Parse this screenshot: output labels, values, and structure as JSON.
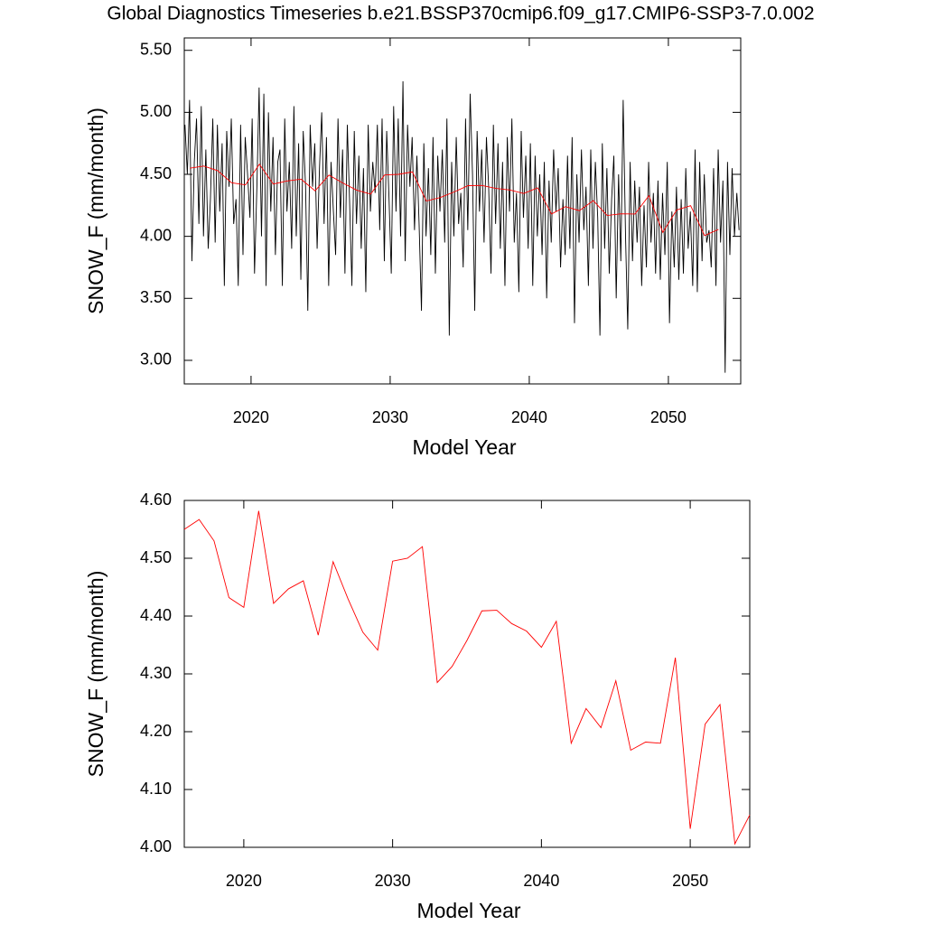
{
  "chart_data": [
    {
      "type": "line",
      "title": "Global Diagnostics Timeseries b.e21.BSSP370cmip6.f09_g17.CMIP6-SSP3-7.0.002",
      "xlabel": "Model Year",
      "ylabel": "SNOW_F (mm/month)",
      "xlim": [
        2015.2,
        2055.2
      ],
      "xticks": [
        2020,
        2030,
        2040,
        2050
      ],
      "ylim": [
        2.81,
        5.6
      ],
      "yticks": [
        {
          "value": 3,
          "label": "3.00"
        },
        {
          "value": 3.5,
          "label": "3.50"
        },
        {
          "value": 4,
          "label": "4.00"
        },
        {
          "value": 4.5,
          "label": "4.50"
        },
        {
          "value": 5,
          "label": "5.00"
        },
        {
          "value": 5.5,
          "label": "5.50"
        }
      ],
      "series": [
        {
          "color": "#000000",
          "x": [
            2015.25,
            2015.42,
            2015.58,
            2015.75,
            2015.92,
            2016.08,
            2016.25,
            2016.42,
            2016.58,
            2016.75,
            2016.92,
            2017.08,
            2017.25,
            2017.42,
            2017.58,
            2017.75,
            2017.92,
            2018.08,
            2018.25,
            2018.42,
            2018.58,
            2018.75,
            2018.92,
            2019.08,
            2019.25,
            2019.42,
            2019.58,
            2019.75,
            2019.92,
            2020.08,
            2020.25,
            2020.42,
            2020.58,
            2020.75,
            2020.92,
            2021.08,
            2021.25,
            2021.42,
            2021.58,
            2021.75,
            2021.92,
            2022.08,
            2022.25,
            2022.42,
            2022.58,
            2022.75,
            2022.92,
            2023.08,
            2023.25,
            2023.42,
            2023.58,
            2023.75,
            2023.92,
            2024.08,
            2024.25,
            2024.42,
            2024.58,
            2024.75,
            2024.92,
            2025.08,
            2025.25,
            2025.42,
            2025.58,
            2025.75,
            2025.92,
            2026.08,
            2026.25,
            2026.42,
            2026.58,
            2026.75,
            2026.92,
            2027.08,
            2027.25,
            2027.42,
            2027.58,
            2027.75,
            2027.92,
            2028.08,
            2028.25,
            2028.42,
            2028.58,
            2028.75,
            2028.92,
            2029.08,
            2029.25,
            2029.42,
            2029.58,
            2029.75,
            2029.92,
            2030.08,
            2030.25,
            2030.42,
            2030.58,
            2030.75,
            2030.92,
            2031.08,
            2031.25,
            2031.42,
            2031.58,
            2031.75,
            2031.92,
            2032.08,
            2032.25,
            2032.42,
            2032.58,
            2032.75,
            2032.92,
            2033.08,
            2033.25,
            2033.42,
            2033.58,
            2033.75,
            2033.92,
            2034.08,
            2034.25,
            2034.42,
            2034.58,
            2034.75,
            2034.92,
            2035.08,
            2035.25,
            2035.42,
            2035.58,
            2035.75,
            2035.92,
            2036.08,
            2036.25,
            2036.42,
            2036.58,
            2036.75,
            2036.92,
            2037.08,
            2037.25,
            2037.42,
            2037.58,
            2037.75,
            2037.92,
            2038.08,
            2038.25,
            2038.42,
            2038.58,
            2038.75,
            2038.92,
            2039.08,
            2039.25,
            2039.42,
            2039.58,
            2039.75,
            2039.92,
            2040.08,
            2040.25,
            2040.42,
            2040.58,
            2040.75,
            2040.92,
            2041.08,
            2041.25,
            2041.42,
            2041.58,
            2041.75,
            2041.92,
            2042.08,
            2042.25,
            2042.42,
            2042.58,
            2042.75,
            2042.92,
            2043.08,
            2043.25,
            2043.42,
            2043.58,
            2043.75,
            2043.92,
            2044.08,
            2044.25,
            2044.42,
            2044.58,
            2044.75,
            2044.92,
            2045.08,
            2045.25,
            2045.42,
            2045.58,
            2045.75,
            2045.92,
            2046.08,
            2046.25,
            2046.42,
            2046.58,
            2046.75,
            2046.92,
            2047.08,
            2047.25,
            2047.42,
            2047.58,
            2047.75,
            2047.92,
            2048.08,
            2048.25,
            2048.42,
            2048.58,
            2048.75,
            2048.92,
            2049.08,
            2049.25,
            2049.42,
            2049.58,
            2049.75,
            2049.92,
            2050.08,
            2050.25,
            2050.42,
            2050.58,
            2050.75,
            2050.92,
            2051.08,
            2051.25,
            2051.42,
            2051.58,
            2051.75,
            2051.92,
            2052.08,
            2052.25,
            2052.42,
            2052.58,
            2052.75,
            2052.92,
            2053.08,
            2053.25,
            2053.42,
            2053.58,
            2053.75,
            2053.92,
            2054.08,
            2054.25,
            2054.42,
            2054.58,
            2054.75,
            2054.92,
            2055.08
          ],
          "values": [
            4.9,
            4.5,
            5.1,
            3.8,
            4.6,
            4.95,
            4.1,
            5.05,
            4.0,
            4.7,
            3.9,
            4.3,
            4.95,
            3.95,
            4.9,
            4.2,
            4.75,
            3.6,
            4.85,
            4.4,
            4.95,
            4.1,
            4.3,
            3.6,
            4.9,
            3.85,
            4.8,
            4.5,
            4.15,
            4.95,
            3.7,
            4.4,
            5.2,
            4.0,
            5.15,
            3.6,
            5.0,
            4.2,
            4.8,
            3.85,
            4.6,
            4.7,
            3.6,
            4.95,
            4.2,
            4.6,
            3.9,
            5.05,
            4.0,
            4.75,
            3.65,
            4.85,
            4.4,
            3.4,
            4.9,
            4.4,
            4.75,
            3.9,
            4.55,
            5.0,
            4.1,
            4.8,
            3.6,
            4.6,
            4.2,
            3.85,
            4.95,
            4.15,
            4.7,
            3.7,
            4.9,
            4.3,
            3.6,
            4.85,
            4.1,
            4.65,
            3.9,
            4.55,
            3.55,
            4.9,
            4.2,
            4.6,
            4.35,
            4.9,
            4.05,
            4.95,
            3.8,
            4.85,
            4.3,
            3.7,
            5.05,
            4.2,
            4.95,
            4.0,
            5.25,
            3.8,
            4.9,
            4.4,
            4.8,
            4.05,
            4.65,
            4.1,
            3.4,
            4.75,
            4.0,
            4.55,
            3.85,
            4.8,
            3.7,
            4.65,
            4.2,
            4.7,
            3.95,
            4.95,
            3.2,
            4.6,
            4.0,
            4.8,
            4.1,
            4.35,
            3.75,
            4.95,
            4.05,
            5.15,
            4.5,
            3.4,
            4.85,
            4.2,
            4.7,
            3.95,
            4.8,
            4.4,
            3.7,
            4.9,
            4.1,
            4.75,
            3.9,
            4.6,
            3.6,
            4.8,
            4.2,
            4.95,
            3.95,
            4.35,
            3.55,
            4.85,
            4.15,
            4.65,
            3.9,
            4.75,
            3.6,
            4.65,
            4.0,
            4.5,
            3.85,
            4.6,
            3.5,
            4.45,
            3.95,
            4.7,
            4.2,
            4.55,
            3.75,
            4.3,
            3.85,
            4.65,
            3.9,
            4.8,
            3.3,
            4.5,
            3.95,
            4.7,
            4.05,
            4.4,
            3.6,
            4.7,
            3.9,
            4.6,
            4.15,
            3.2,
            4.75,
            3.9,
            4.55,
            3.7,
            4.3,
            4.65,
            3.5,
            4.5,
            3.8,
            5.1,
            4.0,
            3.25,
            4.6,
            3.8,
            4.45,
            3.95,
            4.4,
            3.6,
            4.25,
            3.75,
            4.6,
            3.95,
            4.35,
            3.7,
            4.45,
            3.65,
            4.35,
            3.85,
            4.6,
            3.3,
            4.2,
            3.75,
            4.4,
            3.65,
            4.3,
            3.7,
            4.55,
            3.9,
            4.2,
            3.6,
            4.7,
            3.55,
            4.6,
            3.8,
            4.5,
            3.95,
            4.05,
            3.75,
            4.55,
            3.6,
            4.7,
            3.95,
            4.45,
            2.9,
            4.6,
            3.85,
            4.55,
            4.0,
            4.35,
            4.05
          ]
        },
        {
          "color": "#ff0000",
          "x": [
            2015.6,
            2016.6,
            2017.6,
            2018.6,
            2019.6,
            2020.6,
            2021.6,
            2022.6,
            2023.6,
            2024.6,
            2025.6,
            2026.6,
            2027.6,
            2028.6,
            2029.6,
            2030.6,
            2031.6,
            2032.6,
            2033.6,
            2034.6,
            2035.6,
            2036.6,
            2037.6,
            2038.6,
            2039.6,
            2040.6,
            2041.6,
            2042.6,
            2043.6,
            2044.6,
            2045.6,
            2046.6,
            2047.6,
            2048.6,
            2049.6,
            2050.6,
            2051.6,
            2052.6,
            2053.6
          ],
          "values": [
            4.55,
            4.567,
            4.53,
            4.432,
            4.415,
            4.582,
            4.422,
            4.447,
            4.461,
            4.367,
            4.494,
            4.43,
            4.372,
            4.341,
            4.495,
            4.5,
            4.52,
            4.285,
            4.313,
            4.358,
            4.409,
            4.41,
            4.387,
            4.374,
            4.346,
            4.391,
            4.18,
            4.24,
            4.207,
            4.288,
            4.168,
            4.182,
            4.18,
            4.328,
            4.032,
            4.213,
            4.247,
            4.006,
            4.056
          ]
        }
      ]
    },
    {
      "type": "line",
      "xlabel": "Model Year",
      "ylabel": "SNOW_F (mm/month)",
      "xlim": [
        2016,
        2054
      ],
      "xticks": [
        2020,
        2030,
        2040,
        2050
      ],
      "ylim": [
        4.0,
        4.6
      ],
      "yticks": [
        {
          "value": 4.0,
          "label": "4.00"
        },
        {
          "value": 4.1,
          "label": "4.10"
        },
        {
          "value": 4.2,
          "label": "4.20"
        },
        {
          "value": 4.3,
          "label": "4.30"
        },
        {
          "value": 4.4,
          "label": "4.40"
        },
        {
          "value": 4.5,
          "label": "4.50"
        },
        {
          "value": 4.6,
          "label": "4.60"
        }
      ],
      "x": [
        2016,
        2017,
        2018,
        2019,
        2020,
        2021,
        2022,
        2023,
        2024,
        2025,
        2026,
        2027,
        2028,
        2029,
        2030,
        2031,
        2032,
        2033,
        2034,
        2035,
        2036,
        2037,
        2038,
        2039,
        2040,
        2041,
        2042,
        2043,
        2044,
        2045,
        2046,
        2047,
        2048,
        2049,
        2050,
        2051,
        2052,
        2053,
        2054
      ],
      "series": [
        {
          "color": "#ff0000",
          "values": [
            4.55,
            4.567,
            4.53,
            4.432,
            4.415,
            4.582,
            4.422,
            4.447,
            4.461,
            4.367,
            4.494,
            4.43,
            4.372,
            4.341,
            4.495,
            4.5,
            4.52,
            4.285,
            4.313,
            4.358,
            4.409,
            4.41,
            4.387,
            4.374,
            4.346,
            4.391,
            4.18,
            4.24,
            4.207,
            4.288,
            4.168,
            4.182,
            4.18,
            4.328,
            4.032,
            4.213,
            4.247,
            4.006,
            4.056
          ]
        }
      ]
    }
  ]
}
